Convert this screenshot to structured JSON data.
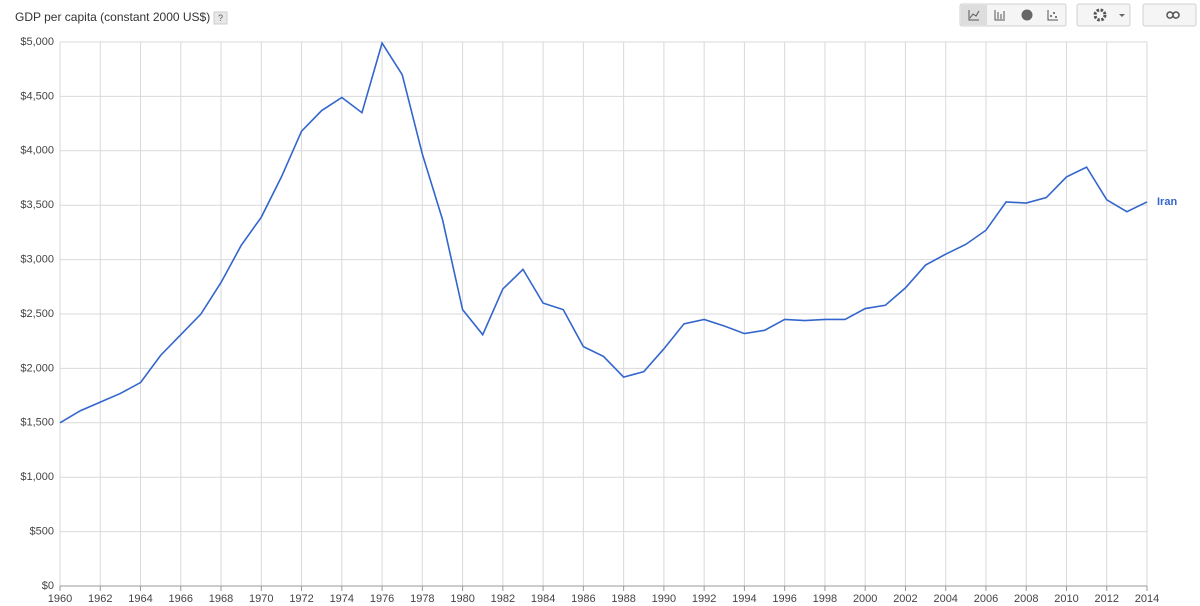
{
  "chart_data": {
    "type": "line",
    "title": "GDP per capita (constant 2000 US$)",
    "title_help": "?",
    "x": [
      1960,
      1961,
      1962,
      1963,
      1964,
      1965,
      1966,
      1967,
      1968,
      1969,
      1970,
      1971,
      1972,
      1973,
      1974,
      1975,
      1976,
      1977,
      1978,
      1979,
      1980,
      1981,
      1982,
      1983,
      1984,
      1985,
      1986,
      1987,
      1988,
      1989,
      1990,
      1991,
      1992,
      1993,
      1994,
      1995,
      1996,
      1997,
      1998,
      1999,
      2000,
      2001,
      2002,
      2003,
      2004,
      2005,
      2006,
      2007,
      2008,
      2009,
      2010,
      2011,
      2012,
      2013,
      2014
    ],
    "series": [
      {
        "name": "Iran",
        "color": "#3366cc",
        "values": [
          1500,
          1610,
          1690,
          1770,
          1870,
          2120,
          2310,
          2500,
          2790,
          3130,
          3390,
          3760,
          4180,
          4370,
          4490,
          4350,
          4990,
          4700,
          3970,
          3370,
          2540,
          2310,
          2730,
          2910,
          2600,
          2540,
          2200,
          2110,
          1920,
          1970,
          2180,
          2410,
          2450,
          2390,
          2320,
          2350,
          2450,
          2440,
          2450,
          2450,
          2550,
          2580,
          2740,
          2950,
          3050,
          3140,
          3270,
          3530,
          3520,
          3570,
          3760,
          3850,
          3550,
          3440,
          3530
        ]
      }
    ],
    "xlim": [
      1960,
      2014
    ],
    "xticks": [
      1960,
      1962,
      1964,
      1966,
      1968,
      1970,
      1972,
      1974,
      1976,
      1978,
      1980,
      1982,
      1984,
      1986,
      1988,
      1990,
      1992,
      1994,
      1996,
      1998,
      2000,
      2002,
      2004,
      2006,
      2008,
      2010,
      2012,
      2014
    ],
    "ylim": [
      0,
      5000
    ],
    "yticks": [
      {
        "value": 0,
        "label": "$0"
      },
      {
        "value": 500,
        "label": "$500"
      },
      {
        "value": 1000,
        "label": "$1,000"
      },
      {
        "value": 1500,
        "label": "$1,500"
      },
      {
        "value": 2000,
        "label": "$2,000"
      },
      {
        "value": 2500,
        "label": "$2,500"
      },
      {
        "value": 3000,
        "label": "$3,000"
      },
      {
        "value": 3500,
        "label": "$3,500"
      },
      {
        "value": 4000,
        "label": "$4,000"
      },
      {
        "value": 4500,
        "label": "$4,500"
      },
      {
        "value": 5000,
        "label": "$5,000"
      }
    ],
    "grid": true
  }
}
